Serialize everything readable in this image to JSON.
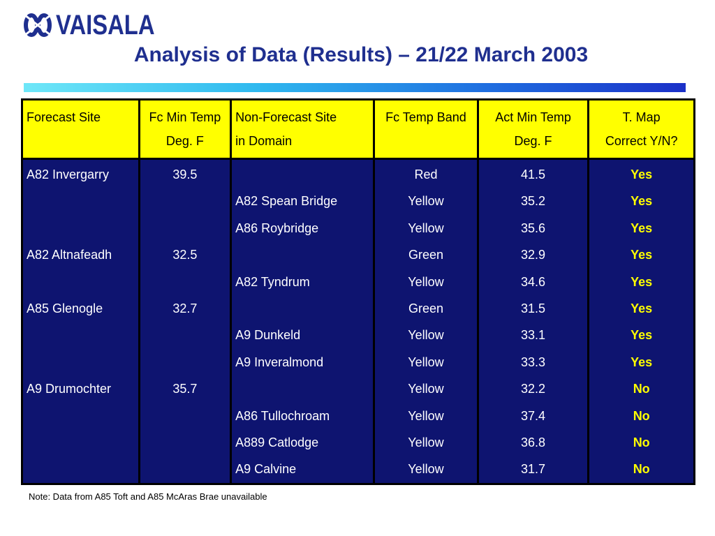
{
  "brand": {
    "logo_text": "VAISALA"
  },
  "title": "Analysis of Data (Results) – 21/22 March 2003",
  "table": {
    "headers": [
      {
        "line1": "Forecast Site",
        "line2": ""
      },
      {
        "line1": "Fc Min Temp",
        "line2": "Deg. F"
      },
      {
        "line1": "Non-Forecast Site",
        "line2": "in Domain"
      },
      {
        "line1": "Fc Temp Band",
        "line2": ""
      },
      {
        "line1": "Act Min Temp",
        "line2": "Deg. F"
      },
      {
        "line1": "T. Map",
        "line2": "Correct Y/N?"
      }
    ],
    "columns": {
      "forecast_site": [
        "A82 Invergarry",
        "",
        "",
        "A82 Altnafeadh",
        "",
        "A85 Glenogle",
        "",
        "",
        "A9 Drumochter",
        "",
        "",
        ""
      ],
      "fc_min_temp": [
        "39.5",
        "",
        "",
        "32.5",
        "",
        "32.7",
        "",
        "",
        "35.7",
        "",
        "",
        ""
      ],
      "non_forecast_site": [
        "",
        "A82 Spean Bridge",
        "A86 Roybridge",
        "",
        "A82 Tyndrum",
        "",
        "A9 Dunkeld",
        "A9 Inveralmond",
        "",
        "A86 Tullochroam",
        "A889 Catlodge",
        "A9 Calvine"
      ],
      "fc_temp_band": [
        "Red",
        "Yellow",
        "Yellow",
        "Green",
        "Yellow",
        "Green",
        "Yellow",
        "Yellow",
        "Yellow",
        "Yellow",
        "Yellow",
        "Yellow"
      ],
      "act_min_temp": [
        "41.5",
        "35.2",
        "35.6",
        "32.9",
        "34.6",
        "31.5",
        "33.1",
        "33.3",
        "32.2",
        "37.4",
        "36.8",
        "31.7"
      ],
      "t_map_correct": [
        "Yes",
        "Yes",
        "Yes",
        "Yes",
        "Yes",
        "Yes",
        "Yes",
        "Yes",
        "No",
        "No",
        "No",
        "No"
      ]
    }
  },
  "note": "Note: Data from A85 Toft and A85 McAras Brae unavailable",
  "colors": {
    "title": "#1f2f8f",
    "header_bg": "#ffff00",
    "body_bg": "#0e1470",
    "result_text": "#ffff00",
    "body_text": "#ffffff"
  }
}
